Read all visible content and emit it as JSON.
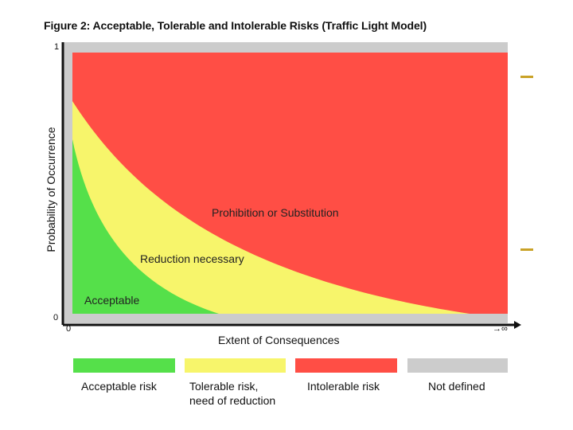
{
  "figure": {
    "title": "Figure 2: Acceptable, Tolerable and Intolerable Risks (Traffic Light Model)",
    "y_axis_label": "Probability of Occurrence",
    "x_axis_label": "Extent of Consequences",
    "y_tick_top": "1",
    "y_tick_bottom": "0",
    "x_tick_origin": "0",
    "x_tick_end": "→∞"
  },
  "regions": {
    "acceptable": "Acceptable",
    "tolerable": "Reduction necessary",
    "intolerable": "Prohibition or Substitution"
  },
  "legend": [
    {
      "label": "Acceptable risk",
      "color": "#55e04a"
    },
    {
      "label": "Tolerable risk,\nneed of reduction",
      "color": "#f7f56b"
    },
    {
      "label": "Intolerable risk",
      "color": "#ff4e45"
    },
    {
      "label": "Not defined",
      "color": "#cccccc"
    }
  ],
  "colors": {
    "frame": "#cccccc",
    "intolerable": "#ff4e45",
    "tolerable": "#f7f56b",
    "acceptable": "#55e04a",
    "accent_dash": "#c9a227"
  }
}
